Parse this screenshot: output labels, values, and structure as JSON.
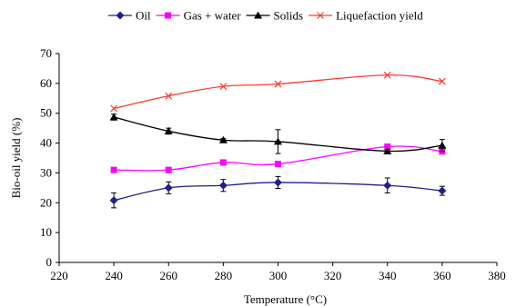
{
  "chart_data": {
    "type": "line",
    "xlabel": "Temperature (°C)",
    "ylabel": "Bio-oil yield (%)",
    "xlim": [
      220,
      380
    ],
    "ylim": [
      0,
      70
    ],
    "x_ticks": [
      220,
      240,
      260,
      280,
      300,
      320,
      340,
      360,
      380
    ],
    "y_ticks": [
      0,
      10,
      20,
      30,
      40,
      50,
      60,
      70
    ],
    "x_tick_labels": [
      "220",
      "240",
      "260",
      "280",
      "300",
      "320",
      "340",
      "360",
      "380"
    ],
    "y_tick_labels": [
      "0",
      "10",
      "20",
      "30",
      "40",
      "50",
      "60",
      "70"
    ],
    "x": [
      240,
      260,
      280,
      300,
      340,
      360
    ],
    "grid": false,
    "legend_position": "top",
    "series": [
      {
        "name": "Oil",
        "marker": "diamond",
        "color": "#1f1f8f",
        "values": [
          20.8,
          25.0,
          25.8,
          26.8,
          25.8,
          24.0
        ],
        "errors": [
          2.5,
          2.0,
          2.0,
          2.0,
          2.5,
          1.5
        ]
      },
      {
        "name": "Gas + water",
        "marker": "square",
        "color": "#ff00ff",
        "values": [
          31.0,
          31.0,
          33.5,
          33.0,
          38.8,
          37.2
        ],
        "errors": null
      },
      {
        "name": "Solids",
        "marker": "triangle",
        "color": "#000000",
        "values": [
          48.7,
          44.0,
          41.0,
          40.5,
          37.3,
          39.2
        ],
        "errors": [
          1.0,
          1.0,
          0.5,
          4.0,
          0.5,
          2.0
        ]
      },
      {
        "name": "Liquefaction yield",
        "marker": "x",
        "color": "#ff3b2f",
        "values": [
          51.6,
          55.8,
          59.0,
          59.8,
          62.8,
          60.7
        ],
        "errors": null
      }
    ]
  }
}
